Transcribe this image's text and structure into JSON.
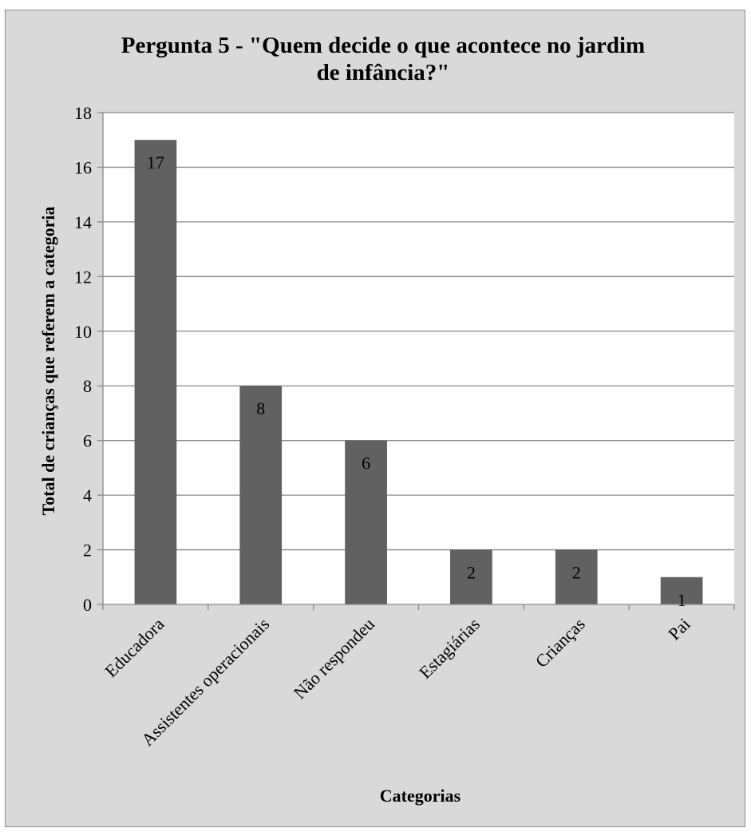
{
  "chart_data": {
    "type": "bar",
    "title": "Pergunta 5 - \"Quem decide o que acontece no jardim\nde infância?\"",
    "xlabel": "Categorias",
    "ylabel": "Total de crianças que referem a categoria",
    "categories": [
      "Educadora",
      "Assistentes operacionais",
      "Não respondeu",
      "Estagiárias",
      "Crianças",
      "Pai"
    ],
    "values": [
      17,
      8,
      6,
      2,
      2,
      1
    ],
    "ylim": [
      0,
      18
    ],
    "yticks": [
      0,
      2,
      4,
      6,
      8,
      10,
      12,
      14,
      16,
      18
    ],
    "data_labels": true,
    "grid": true,
    "legend": "none",
    "colors": {
      "bar": "#616161",
      "plot_bg": "#ffffff",
      "frame_bg": "#d9d9d9",
      "grid": "#888888"
    }
  }
}
